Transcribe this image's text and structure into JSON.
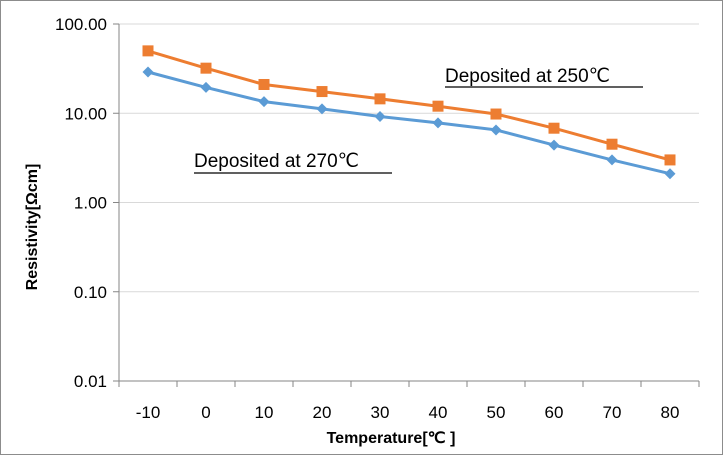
{
  "chart_data": {
    "type": "line",
    "title": "",
    "xlabel": "Temperature[℃ ]",
    "ylabel": "Resistivity[Ωcm]",
    "y_scale": "log",
    "ylim": [
      0.01,
      100
    ],
    "grid": "horizontal",
    "legend": "none",
    "x": [
      -10,
      0,
      10,
      20,
      30,
      40,
      50,
      60,
      70,
      80
    ],
    "x_tick_labels": [
      "-10",
      "0",
      "10",
      "20",
      "30",
      "40",
      "50",
      "60",
      "70",
      "80"
    ],
    "y_tick_labels": [
      "0.01",
      "0.10",
      "1.00",
      "10.00",
      "100.00"
    ],
    "y_tick_values": [
      0.01,
      0.1,
      1,
      10,
      100
    ],
    "series": [
      {
        "name": "Deposited at 250℃",
        "marker": "square",
        "color": "#ed7d31",
        "values": [
          50,
          32,
          21,
          17.5,
          14.5,
          12,
          9.8,
          6.8,
          4.5,
          3.0
        ]
      },
      {
        "name": "Deposited at 270℃",
        "marker": "diamond",
        "color": "#5b9bd5",
        "values": [
          29,
          19.5,
          13.5,
          11.2,
          9.2,
          7.8,
          6.5,
          4.4,
          3.0,
          2.1
        ]
      }
    ],
    "annotations": [
      "Deposited at 250℃",
      "Deposited at 270℃"
    ]
  },
  "colors": {
    "grid": "#d9d9d9",
    "axis": "#868686",
    "frame": "#8c8c8c"
  }
}
